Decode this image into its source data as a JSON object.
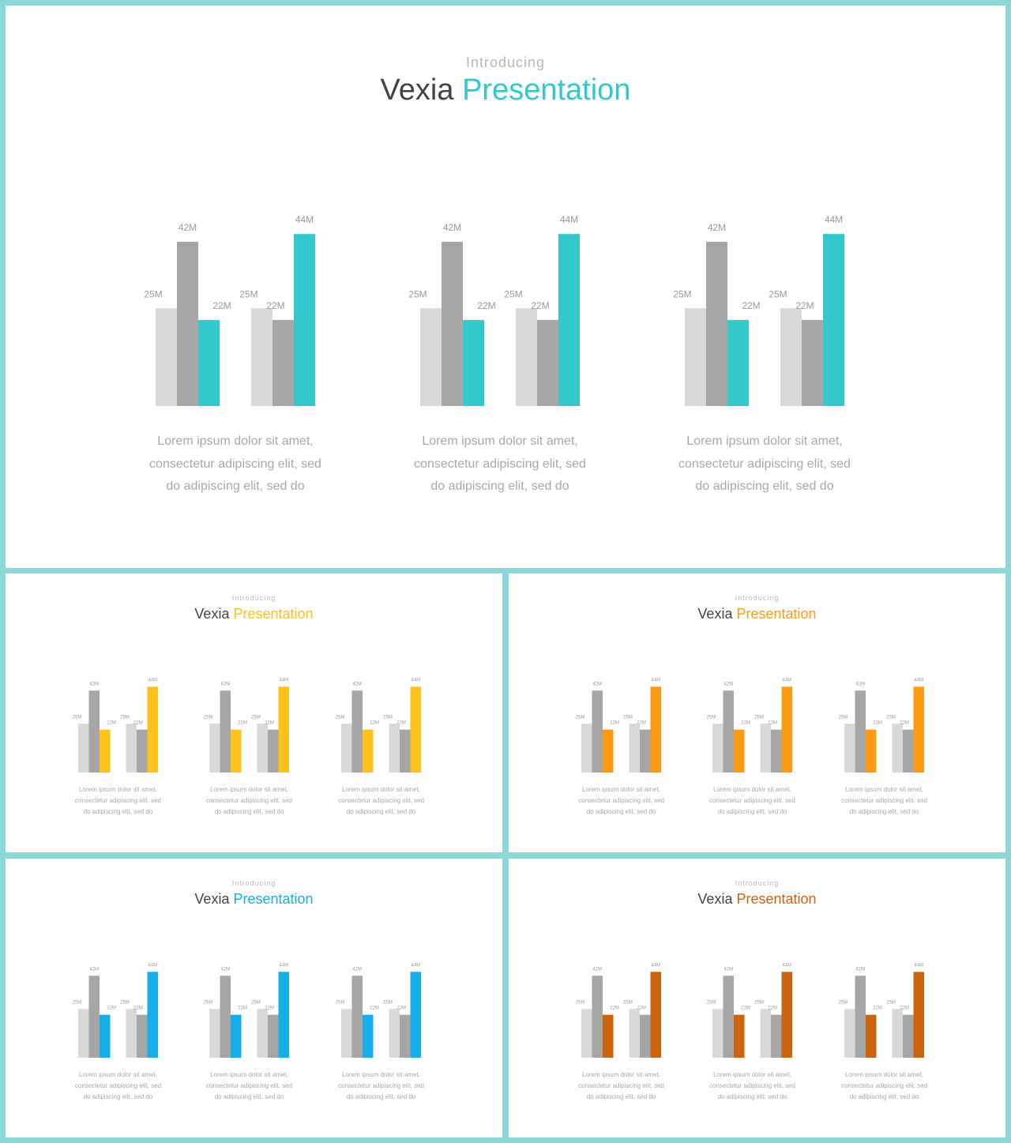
{
  "slides": [
    {
      "intro": "Introducing",
      "title_main": "Vexia",
      "title_accent": "Presentation",
      "accent_color": "#33c9cc",
      "description": [
        "Lorem ipsum dolor sit amet,",
        "consectetur adipiscing  elit,  sed",
        "do adipiscing  elit,  sed do"
      ]
    },
    {
      "intro": "Introducing",
      "title_main": "Vexia",
      "title_accent": "Presentation",
      "accent_color": "#ffc21a",
      "description": [
        "Lorem ipsum dolor sit amet,",
        "consectetur adipiscing  elit,  sed",
        "do adipiscing  elit,  sed do"
      ]
    },
    {
      "intro": "Introducing",
      "title_main": "Vexia",
      "title_accent": "Presentation",
      "accent_color": "#ff9b12",
      "description": [
        "Lorem ipsum dolor sit amet,",
        "consectetur adipiscing  elit,  sed",
        "do adipiscing  elit,  sed do"
      ]
    },
    {
      "intro": "Introducing",
      "title_main": "Vexia",
      "title_accent": "Presentation",
      "accent_color": "#15aee8",
      "description": [
        "Lorem ipsum dolor sit amet,",
        "consectetur adipiscing  elit,  sed",
        "do adipiscing  elit,  sed do"
      ]
    },
    {
      "intro": "Introducing",
      "title_main": "Vexia",
      "title_accent": "Presentation",
      "accent_color": "#cc640f",
      "description": [
        "Lorem ipsum dolor sit amet,",
        "consectetur adipiscing  elit,  sed",
        "do adipiscing  elit,  sed do"
      ]
    }
  ],
  "colors": {
    "light_bar": "#d9d9d9",
    "mid_bar": "#a6a6a6",
    "frame": "#8ad8d8"
  },
  "chart_data": {
    "type": "bar",
    "note_repeat": "same grouped bar chart repeated 3 times per slide",
    "groups": [
      {
        "series": [
          {
            "role": "light",
            "value": 25,
            "label": "25M"
          },
          {
            "role": "mid",
            "value": 42,
            "label": "42M"
          },
          {
            "role": "accent",
            "value": 22,
            "label": "22M"
          }
        ]
      },
      {
        "series": [
          {
            "role": "light",
            "value": 25,
            "label": "25M"
          },
          {
            "role": "mid",
            "value": 22,
            "label": "22M"
          },
          {
            "role": "accent",
            "value": 44,
            "label": "44M"
          }
        ]
      }
    ]
  }
}
